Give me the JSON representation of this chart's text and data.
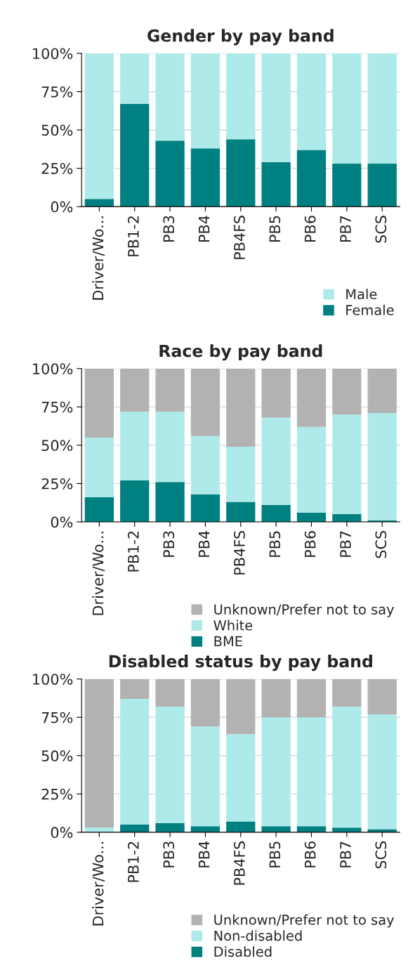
{
  "chart_data": [
    {
      "type": "bar",
      "title": "Gender by pay band",
      "stacked": true,
      "categories": [
        "Driver/Wo...",
        "PB1-2",
        "PB3",
        "PB4",
        "PB4FS",
        "PB5",
        "PB6",
        "PB7",
        "SCS"
      ],
      "series": [
        {
          "name": "Female",
          "color": "#008080",
          "values": [
            5,
            67,
            43,
            38,
            44,
            29,
            37,
            28,
            28
          ]
        },
        {
          "name": "Male",
          "color": "#afeaea",
          "values": [
            95,
            33,
            57,
            62,
            56,
            71,
            63,
            72,
            72
          ]
        }
      ],
      "ylim": [
        0,
        100
      ],
      "yticks": [
        {
          "value": 0,
          "label": "0%"
        },
        {
          "value": 25,
          "label": "25%"
        },
        {
          "value": 50,
          "label": "50%"
        },
        {
          "value": 75,
          "label": "75%"
        },
        {
          "value": 100,
          "label": "100%"
        }
      ],
      "grid": "y",
      "legend": "bottom right"
    },
    {
      "type": "bar",
      "title": "Race by pay band",
      "stacked": true,
      "categories": [
        "Driver/Wo...",
        "PB1-2",
        "PB3",
        "PB4",
        "PB4FS",
        "PB5",
        "PB6",
        "PB7",
        "SCS"
      ],
      "series": [
        {
          "name": "BME",
          "color": "#008080",
          "values": [
            16,
            27,
            26,
            18,
            13,
            11,
            6,
            5,
            1
          ]
        },
        {
          "name": "White",
          "color": "#afeaea",
          "values": [
            39,
            45,
            46,
            38,
            36,
            57,
            56,
            65,
            70
          ]
        },
        {
          "name": "Unknown/Prefer not to say",
          "color": "#b2b2b2",
          "values": [
            45,
            28,
            28,
            44,
            51,
            32,
            38,
            30,
            29
          ]
        }
      ],
      "ylim": [
        0,
        100
      ],
      "yticks": [
        {
          "value": 0,
          "label": "0%"
        },
        {
          "value": 25,
          "label": "25%"
        },
        {
          "value": 50,
          "label": "50%"
        },
        {
          "value": 75,
          "label": "75%"
        },
        {
          "value": 100,
          "label": "100%"
        }
      ],
      "grid": "y",
      "legend": "bottom right"
    },
    {
      "type": "bar",
      "title": "Disabled status by pay band",
      "stacked": true,
      "categories": [
        "Driver/Wo...",
        "PB1-2",
        "PB3",
        "PB4",
        "PB4FS",
        "PB5",
        "PB6",
        "PB7",
        "SCS"
      ],
      "series": [
        {
          "name": "Disabled",
          "color": "#008080",
          "values": [
            0,
            5,
            6,
            4,
            7,
            4,
            4,
            3,
            2
          ]
        },
        {
          "name": "Non-disabled",
          "color": "#afeaea",
          "values": [
            3,
            82,
            76,
            65,
            57,
            71,
            71,
            79,
            75
          ]
        },
        {
          "name": "Unknown/Prefer not to say",
          "color": "#b2b2b2",
          "values": [
            97,
            13,
            18,
            31,
            36,
            25,
            25,
            18,
            23
          ]
        }
      ],
      "ylim": [
        0,
        100
      ],
      "yticks": [
        {
          "value": 0,
          "label": "0%"
        },
        {
          "value": 25,
          "label": "25%"
        },
        {
          "value": 50,
          "label": "50%"
        },
        {
          "value": 75,
          "label": "75%"
        },
        {
          "value": 100,
          "label": "100%"
        }
      ],
      "grid": "y",
      "legend": "bottom right"
    }
  ]
}
